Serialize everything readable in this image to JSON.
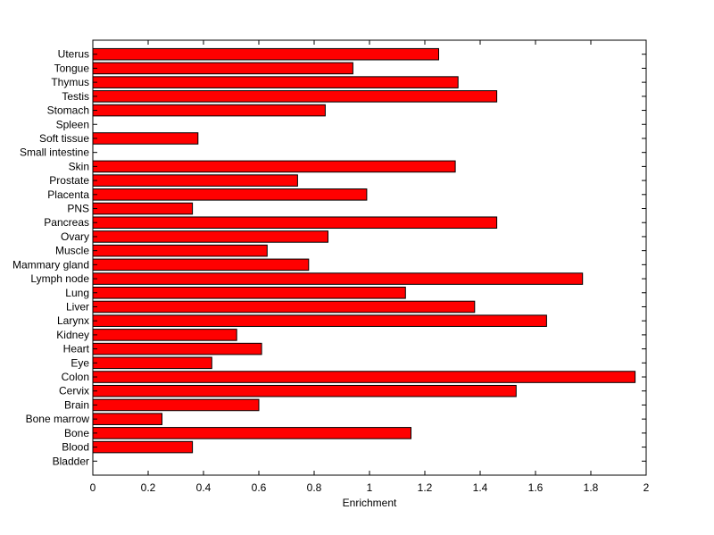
{
  "chart_data": {
    "type": "bar",
    "orientation": "horizontal",
    "categories": [
      "Bladder",
      "Blood",
      "Bone",
      "Bone marrow",
      "Brain",
      "Cervix",
      "Colon",
      "Eye",
      "Heart",
      "Kidney",
      "Larynx",
      "Liver",
      "Lung",
      "Lymph node",
      "Mammary gland",
      "Muscle",
      "Ovary",
      "Pancreas",
      "PNS",
      "Placenta",
      "Prostate",
      "Skin",
      "Small intestine",
      "Soft tissue",
      "Spleen",
      "Stomach",
      "Testis",
      "Thymus",
      "Tongue",
      "Uterus"
    ],
    "values": [
      0,
      0.36,
      1.15,
      0.25,
      0.6,
      1.53,
      1.96,
      0.43,
      0.61,
      0.52,
      1.64,
      1.38,
      1.13,
      1.77,
      0.78,
      0.63,
      0.85,
      1.46,
      0.36,
      0.99,
      0.74,
      1.31,
      0,
      0.38,
      0,
      0.84,
      1.46,
      1.32,
      0.94,
      1.25
    ],
    "xlabel": "Enrichment",
    "ylabel": "",
    "title": "",
    "xlim": [
      0,
      2
    ],
    "xticks": [
      "0",
      "0.2",
      "0.4",
      "0.6",
      "0.8",
      "1",
      "1.2",
      "1.4",
      "1.6",
      "1.8",
      "2"
    ],
    "grid": false,
    "bar_color": "#ff0000",
    "edge_color": "#000000"
  }
}
